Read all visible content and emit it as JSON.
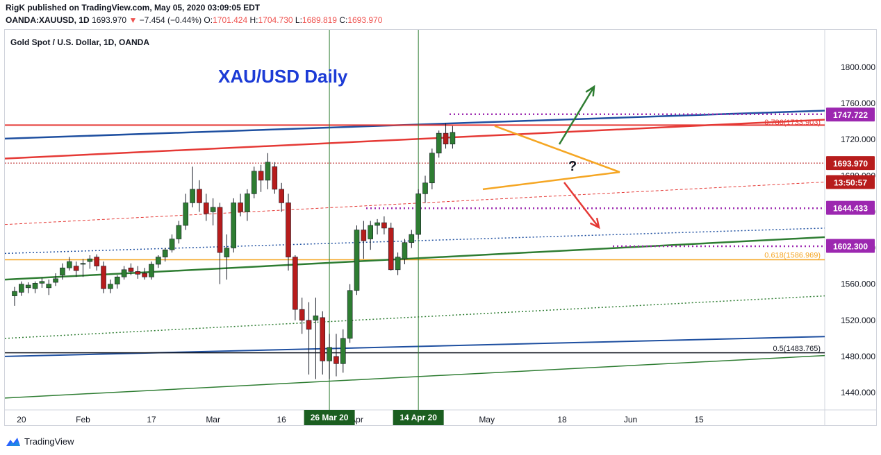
{
  "header": {
    "publisher_line": "RigK published on TradingView.com, May 05, 2020 03:09:05 EDT",
    "symbol": "OANDA:XAUUSD, 1D",
    "last": "1693.970",
    "change": "−7.454 (−0.44%)",
    "open_label": "O:",
    "open": "1701.424",
    "high_label": "H:",
    "high": "1704.730",
    "low_label": "L:",
    "low": "1689.819",
    "close_label": "C:",
    "close": "1693.970"
  },
  "footer": {
    "brand": "TradingView"
  },
  "colors": {
    "up": "#2e7d32",
    "down": "#b71c1c",
    "red_line": "#e53935",
    "blue_line": "#1e4fa0",
    "green_line": "#2e7d32",
    "orange": "#f5a623",
    "purple": "#9c27b0",
    "price_label": "#b71c1c"
  },
  "chart_data": {
    "type": "candlestick",
    "title": "Gold Spot / U.S. Dollar, 1D, OANDA",
    "annotation_title": "XAU/USD Daily",
    "question_mark": "?",
    "ylim": [
      1428,
      1836
    ],
    "y_ticks": [
      "1440.000",
      "1480.000",
      "1520.000",
      "1560.000",
      "1600.000",
      "1640.000",
      "1680.000",
      "1720.000",
      "1760.000",
      "1800.000"
    ],
    "y_tick_values": [
      1440,
      1480,
      1520,
      1560,
      1600,
      1640,
      1680,
      1720,
      1760,
      1800
    ],
    "x_ticks": [
      "20",
      "Feb",
      "17",
      "Mar",
      "16",
      "Apr",
      "May",
      "18",
      "Jun",
      "15"
    ],
    "x_tick_index": [
      1,
      10,
      20,
      29,
      39,
      50,
      69,
      80,
      90,
      100
    ],
    "vertical_markers": [
      {
        "label": "26 Mar 20",
        "index": 46
      },
      {
        "label": "14 Apr 20",
        "index": 59
      }
    ],
    "price_labels": [
      {
        "text": "1747.722",
        "value": 1747.722,
        "style": "purple"
      },
      {
        "text": "1693.970",
        "value": 1693.97,
        "style": "current"
      },
      {
        "text": "13:50:57",
        "value": 1673,
        "style": "timer"
      },
      {
        "text": "1644.433",
        "value": 1644.433,
        "style": "purple"
      },
      {
        "text": "1602.300",
        "value": 1602.3,
        "style": "purple"
      }
    ],
    "fib_labels": [
      {
        "text": "0.786(1733.903)",
        "value": 1733.903,
        "color": "#e53935"
      },
      {
        "text": "0.618(1586.969)",
        "value": 1586.969,
        "color": "#f5a623"
      },
      {
        "text": "0.5(1483.765)",
        "value": 1483.765,
        "color": "#131722"
      }
    ],
    "candles": [
      [
        1547,
        1557,
        1536,
        1552
      ],
      [
        1551,
        1563,
        1547,
        1560
      ],
      [
        1556,
        1562,
        1550,
        1559
      ],
      [
        1555,
        1563,
        1550,
        1561
      ],
      [
        1561,
        1567,
        1556,
        1563
      ],
      [
        1556,
        1565,
        1548,
        1560
      ],
      [
        1562,
        1572,
        1558,
        1566
      ],
      [
        1570,
        1583,
        1565,
        1578
      ],
      [
        1578,
        1590,
        1575,
        1585
      ],
      [
        1580,
        1585,
        1568,
        1575
      ],
      [
        1582,
        1588,
        1568,
        1583
      ],
      [
        1585,
        1592,
        1577,
        1588
      ],
      [
        1590,
        1593,
        1575,
        1580
      ],
      [
        1580,
        1585,
        1550,
        1555
      ],
      [
        1555,
        1565,
        1550,
        1560
      ],
      [
        1560,
        1570,
        1555,
        1568
      ],
      [
        1568,
        1580,
        1565,
        1576
      ],
      [
        1578,
        1583,
        1570,
        1574
      ],
      [
        1574,
        1580,
        1566,
        1571
      ],
      [
        1572,
        1578,
        1565,
        1568
      ],
      [
        1568,
        1585,
        1565,
        1582
      ],
      [
        1582,
        1592,
        1578,
        1590
      ],
      [
        1590,
        1600,
        1585,
        1598
      ],
      [
        1598,
        1615,
        1595,
        1610
      ],
      [
        1610,
        1630,
        1605,
        1625
      ],
      [
        1625,
        1660,
        1620,
        1650
      ],
      [
        1650,
        1690,
        1645,
        1665
      ],
      [
        1665,
        1675,
        1640,
        1650
      ],
      [
        1650,
        1660,
        1630,
        1638
      ],
      [
        1640,
        1655,
        1625,
        1645
      ],
      [
        1645,
        1650,
        1560,
        1595
      ],
      [
        1590,
        1615,
        1565,
        1600
      ],
      [
        1600,
        1655,
        1595,
        1650
      ],
      [
        1650,
        1660,
        1635,
        1640
      ],
      [
        1640,
        1665,
        1630,
        1660
      ],
      [
        1660,
        1690,
        1655,
        1685
      ],
      [
        1685,
        1692,
        1662,
        1675
      ],
      [
        1675,
        1705,
        1665,
        1695
      ],
      [
        1690,
        1695,
        1660,
        1665
      ],
      [
        1665,
        1672,
        1640,
        1650
      ],
      [
        1650,
        1660,
        1575,
        1590
      ],
      [
        1590,
        1592,
        1520,
        1532
      ],
      [
        1532,
        1545,
        1505,
        1520
      ],
      [
        1520,
        1540,
        1460,
        1510
      ],
      [
        1520,
        1545,
        1455,
        1525
      ],
      [
        1523,
        1530,
        1460,
        1475
      ],
      [
        1475,
        1505,
        1455,
        1490
      ],
      [
        1480,
        1505,
        1458,
        1472
      ],
      [
        1472,
        1510,
        1462,
        1500
      ],
      [
        1500,
        1560,
        1495,
        1553
      ],
      [
        1553,
        1625,
        1548,
        1620
      ],
      [
        1620,
        1630,
        1588,
        1608
      ],
      [
        1610,
        1630,
        1598,
        1625
      ],
      [
        1625,
        1632,
        1615,
        1628
      ],
      [
        1628,
        1635,
        1615,
        1622
      ],
      [
        1622,
        1628,
        1575,
        1576
      ],
      [
        1576,
        1595,
        1570,
        1590
      ],
      [
        1588,
        1610,
        1582,
        1606
      ],
      [
        1606,
        1620,
        1600,
        1615
      ],
      [
        1615,
        1665,
        1610,
        1660
      ],
      [
        1660,
        1680,
        1650,
        1672
      ],
      [
        1672,
        1710,
        1665,
        1705
      ],
      [
        1705,
        1730,
        1700,
        1727
      ],
      [
        1727,
        1738,
        1710,
        1715
      ],
      [
        1715,
        1735,
        1710,
        1728
      ]
    ]
  }
}
